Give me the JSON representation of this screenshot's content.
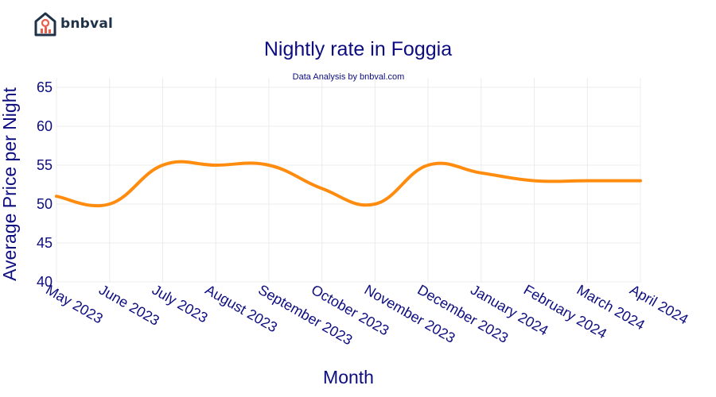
{
  "brand": {
    "name": "bnbval"
  },
  "chart_data": {
    "type": "line",
    "title": "Nightly rate in Foggia",
    "subtitle": "Data Analysis by bnbval.com",
    "xlabel": "Month",
    "ylabel": "Average Price per Night",
    "ylim": [
      40,
      65
    ],
    "yticks": [
      40,
      45,
      50,
      55,
      60,
      65
    ],
    "grid": true,
    "categories": [
      "May 2023",
      "June 2023",
      "July 2023",
      "August 2023",
      "September 2023",
      "October 2023",
      "November 2023",
      "December 2023",
      "January 2024",
      "February 2024",
      "March 2024",
      "April 2024"
    ],
    "series": [
      {
        "values": [
          51,
          50,
          55,
          55,
          55,
          52,
          50,
          55,
          54,
          53,
          53,
          53
        ]
      }
    ],
    "colors": {
      "line": "#ff8c0f",
      "text": "#0d0d80"
    }
  }
}
